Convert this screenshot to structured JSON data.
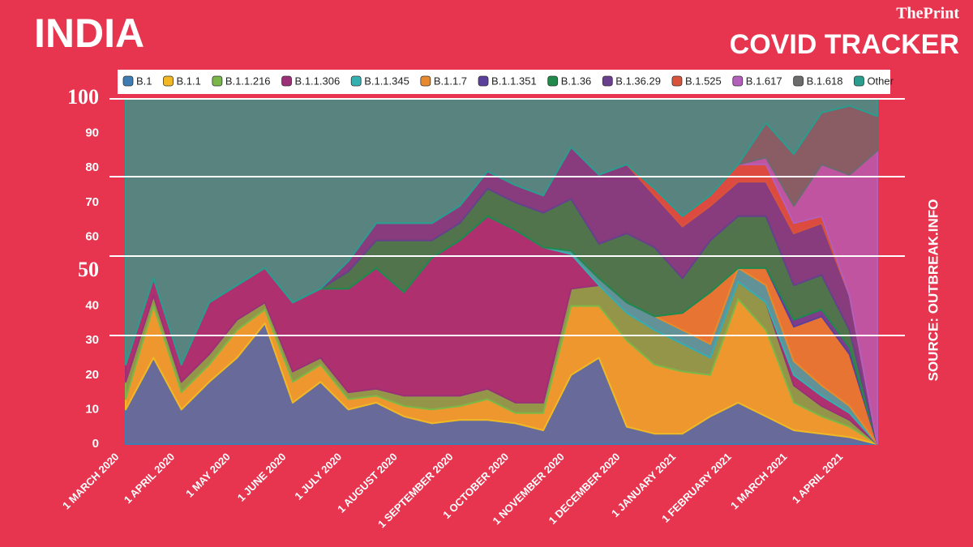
{
  "chart_data": {
    "type": "stacked-area",
    "title": "INDIA",
    "subtitle": "COVID TRACKER",
    "brand": "ThePrint",
    "source": "SOURCE: OUTBREAK.INFO",
    "categories": [
      "1 MARCH 2020",
      null,
      "1 APRIL 2020",
      null,
      "1 MAY 2020",
      null,
      "1 JUNE 2020",
      null,
      "1 JULY 2020",
      null,
      "1 AUGUST 2020",
      null,
      "1 SEPTEMBER 2020",
      null,
      "1 OCTOBER 2020",
      null,
      "1 NOVEMBER 2020",
      null,
      "1 DECEMBER 2020",
      null,
      "1 JANUARY 2021",
      null,
      "1 FEBRUARY 2021",
      null,
      "1 MARCH 2021",
      null,
      "1 APRIL 2021",
      null
    ],
    "ylim": [
      0,
      100
    ],
    "yticks": [
      0,
      10,
      20,
      30,
      40,
      50,
      60,
      70,
      80,
      90,
      100
    ],
    "series": [
      {
        "name": "B.1",
        "color": "#3d7db3",
        "values": [
          10,
          25,
          10,
          18,
          25,
          35,
          12,
          18,
          10,
          12,
          8,
          6,
          7,
          7,
          6,
          4,
          20,
          25,
          5,
          3,
          3,
          8,
          12,
          8,
          4,
          3,
          2,
          0
        ]
      },
      {
        "name": "B.1.1",
        "color": "#f2b824",
        "values": [
          3,
          15,
          5,
          5,
          8,
          4,
          6,
          5,
          3,
          2,
          3,
          4,
          4,
          6,
          3,
          5,
          20,
          15,
          25,
          20,
          18,
          12,
          30,
          25,
          8,
          5,
          3,
          0
        ]
      },
      {
        "name": "B.1.1.216",
        "color": "#7ab648",
        "values": [
          5,
          3,
          3,
          3,
          3,
          2,
          3,
          2,
          2,
          2,
          3,
          4,
          3,
          3,
          3,
          3,
          5,
          6,
          8,
          10,
          8,
          5,
          5,
          8,
          5,
          3,
          2,
          0
        ]
      },
      {
        "name": "B.1.1.306",
        "color": "#9b2f78",
        "values": [
          5,
          5,
          5,
          15,
          10,
          10,
          20,
          20,
          30,
          35,
          30,
          40,
          45,
          50,
          50,
          45,
          10,
          0,
          0,
          0,
          0,
          0,
          0,
          0,
          3,
          3,
          2,
          0
        ]
      },
      {
        "name": "B.1.1.345",
        "color": "#35b0b0",
        "values": [
          0,
          0,
          0,
          0,
          0,
          0,
          0,
          0,
          0,
          0,
          0,
          0,
          0,
          0,
          0,
          0,
          1,
          2,
          3,
          4,
          4,
          4,
          4,
          5,
          4,
          3,
          2,
          0
        ]
      },
      {
        "name": "B.1.1.7",
        "color": "#e8892b",
        "values": [
          0,
          0,
          0,
          0,
          0,
          0,
          0,
          0,
          0,
          0,
          0,
          0,
          0,
          0,
          0,
          0,
          0,
          0,
          0,
          0,
          5,
          15,
          0,
          5,
          10,
          20,
          15,
          0
        ]
      },
      {
        "name": "B.1.1.351",
        "color": "#5b3f9c",
        "values": [
          0,
          0,
          0,
          0,
          0,
          0,
          0,
          0,
          0,
          0,
          0,
          0,
          0,
          0,
          0,
          0,
          0,
          0,
          0,
          0,
          0,
          0,
          0,
          0,
          2,
          2,
          2,
          0
        ]
      },
      {
        "name": "B.1.36",
        "color": "#1f8a4c",
        "values": [
          0,
          0,
          0,
          0,
          0,
          0,
          0,
          0,
          5,
          8,
          15,
          5,
          5,
          8,
          8,
          10,
          15,
          10,
          20,
          20,
          10,
          15,
          15,
          15,
          10,
          10,
          5,
          0
        ]
      },
      {
        "name": "B.1.36.29",
        "color": "#6a3f8c",
        "values": [
          0,
          0,
          0,
          0,
          0,
          0,
          0,
          0,
          3,
          5,
          5,
          5,
          5,
          5,
          5,
          5,
          15,
          20,
          20,
          15,
          15,
          10,
          10,
          10,
          15,
          15,
          10,
          0
        ]
      },
      {
        "name": "B.1.525",
        "color": "#d9533b",
        "values": [
          0,
          0,
          0,
          0,
          0,
          0,
          0,
          0,
          0,
          0,
          0,
          0,
          0,
          0,
          0,
          0,
          0,
          0,
          0,
          2,
          3,
          3,
          5,
          5,
          3,
          2,
          0,
          0
        ]
      },
      {
        "name": "B.1.617",
        "color": "#b35fbb",
        "values": [
          0,
          0,
          0,
          0,
          0,
          0,
          0,
          0,
          0,
          0,
          0,
          0,
          0,
          0,
          0,
          0,
          0,
          0,
          0,
          0,
          0,
          0,
          0,
          2,
          5,
          15,
          35,
          85
        ]
      },
      {
        "name": "B.1.618",
        "color": "#6b6b6b",
        "values": [
          0,
          0,
          0,
          0,
          0,
          0,
          0,
          0,
          0,
          0,
          0,
          0,
          0,
          0,
          0,
          0,
          0,
          0,
          0,
          0,
          0,
          0,
          0,
          10,
          15,
          15,
          20,
          10
        ]
      },
      {
        "name": "Other",
        "color": "#2a9d8f",
        "values": [
          77,
          52,
          77,
          59,
          54,
          49,
          59,
          55,
          47,
          36,
          36,
          36,
          31,
          21,
          25,
          28,
          14,
          22,
          19,
          26,
          34,
          28,
          19,
          7,
          16,
          4,
          2,
          5
        ]
      }
    ]
  }
}
